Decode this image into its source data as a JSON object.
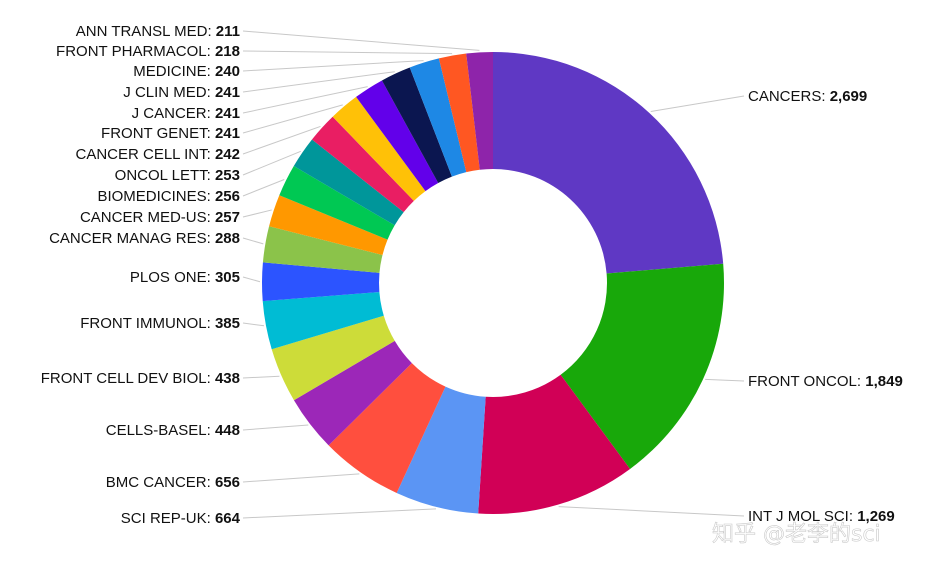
{
  "chart_data": {
    "type": "pie",
    "donut": true,
    "series": [
      {
        "name": "CANCERS",
        "value": 2699,
        "color": "#5f38c4"
      },
      {
        "name": "FRONT ONCOL",
        "value": 1849,
        "color": "#18a80a"
      },
      {
        "name": "INT J MOL SCI",
        "value": 1269,
        "color": "#d10056"
      },
      {
        "name": "SCI REP-UK",
        "value": 664,
        "color": "#5b95f4"
      },
      {
        "name": "BMC CANCER",
        "value": 656,
        "color": "#ff4f3e"
      },
      {
        "name": "CELLS-BASEL",
        "value": 448,
        "color": "#9c27b8"
      },
      {
        "name": "FRONT CELL DEV BIOL",
        "value": 438,
        "color": "#cddc39"
      },
      {
        "name": "FRONT IMMUNOL",
        "value": 385,
        "color": "#00bcd4"
      },
      {
        "name": "PLOS ONE",
        "value": 305,
        "color": "#2c54ff"
      },
      {
        "name": "CANCER MANAG RES",
        "value": 288,
        "color": "#8bc34a"
      },
      {
        "name": "CANCER MED-US",
        "value": 257,
        "color": "#ff9800"
      },
      {
        "name": "BIOMEDICINES",
        "value": 256,
        "color": "#00c853"
      },
      {
        "name": "ONCOL LETT",
        "value": 253,
        "color": "#00969a"
      },
      {
        "name": "CANCER CELL INT",
        "value": 242,
        "color": "#e91e63"
      },
      {
        "name": "FRONT GENET",
        "value": 241,
        "color": "#ffc107"
      },
      {
        "name": "J CANCER",
        "value": 241,
        "color": "#6200ea"
      },
      {
        "name": "J CLIN MED",
        "value": 241,
        "color": "#0b1650"
      },
      {
        "name": "MEDICINE",
        "value": 240,
        "color": "#1e88e5"
      },
      {
        "name": "FRONT PHARMACOL",
        "value": 218,
        "color": "#ff5722"
      },
      {
        "name": "ANN TRANSL MED",
        "value": 211,
        "color": "#8e24aa"
      }
    ],
    "labels": [
      {
        "name": "CANCERS",
        "value_text": "2,699",
        "side": "right"
      },
      {
        "name": "FRONT ONCOL",
        "value_text": "1,849",
        "side": "right"
      },
      {
        "name": "INT J MOL SCI",
        "value_text": "1,269",
        "side": "right"
      },
      {
        "name": "SCI REP-UK",
        "value_text": "664",
        "side": "left"
      },
      {
        "name": "BMC CANCER",
        "value_text": "656",
        "side": "left"
      },
      {
        "name": "CELLS-BASEL",
        "value_text": "448",
        "side": "left"
      },
      {
        "name": "FRONT CELL DEV BIOL",
        "value_text": "438",
        "side": "left"
      },
      {
        "name": "FRONT IMMUNOL",
        "value_text": "385",
        "side": "left"
      },
      {
        "name": "PLOS ONE",
        "value_text": "305",
        "side": "left"
      },
      {
        "name": "CANCER MANAG RES",
        "value_text": "288",
        "side": "left"
      },
      {
        "name": "CANCER MED-US",
        "value_text": "257",
        "side": "left"
      },
      {
        "name": "BIOMEDICINES",
        "value_text": "256",
        "side": "left"
      },
      {
        "name": "ONCOL LETT",
        "value_text": "253",
        "side": "left"
      },
      {
        "name": "CANCER CELL INT",
        "value_text": "242",
        "side": "left"
      },
      {
        "name": "FRONT GENET",
        "value_text": "241",
        "side": "left"
      },
      {
        "name": "J CANCER",
        "value_text": "241",
        "side": "left"
      },
      {
        "name": "J CLIN MED",
        "value_text": "241",
        "side": "left"
      },
      {
        "name": "MEDICINE",
        "value_text": "240",
        "side": "left"
      },
      {
        "name": "FRONT PHARMACOL",
        "value_text": "218",
        "side": "left"
      },
      {
        "name": "ANN TRANSL MED",
        "value_text": "211",
        "side": "left"
      }
    ],
    "start_angle": "top",
    "direction": "clockwise",
    "legend": "none"
  },
  "watermark": "知乎 @老李的sci"
}
